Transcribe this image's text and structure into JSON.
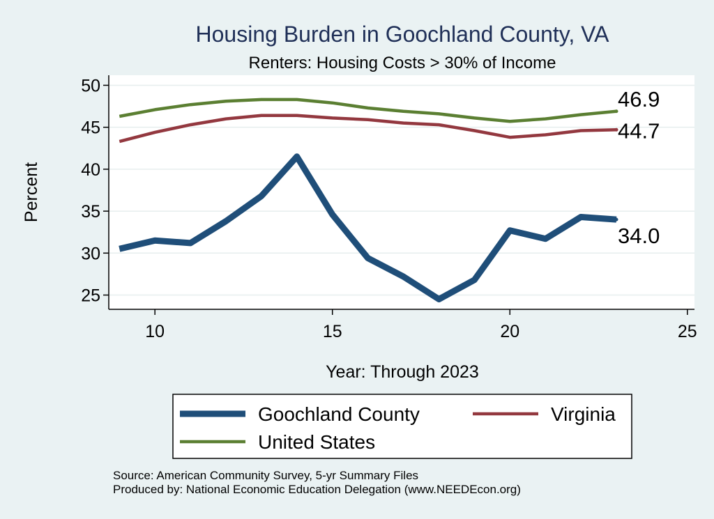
{
  "chart_data": {
    "type": "line",
    "title": "Housing Burden in Goochland County, VA",
    "subtitle": "Renters: Housing Costs > 30% of Income",
    "xlabel": "Year: Through 2023",
    "ylabel": "Percent",
    "xlim": [
      8.7,
      25.2
    ],
    "ylim": [
      23.3,
      51.2
    ],
    "x_ticks": [
      10,
      15,
      20,
      25
    ],
    "y_ticks": [
      25,
      30,
      35,
      40,
      45,
      50
    ],
    "grid": true,
    "legend_position": "bottom",
    "x": [
      9,
      10,
      11,
      12,
      13,
      14,
      15,
      16,
      17,
      18,
      19,
      20,
      21,
      22,
      23
    ],
    "series": [
      {
        "name": "Goochland County",
        "color": "#1f4e79",
        "line_width": 9,
        "values": [
          30.5,
          31.5,
          31.2,
          33.8,
          36.8,
          41.5,
          34.6,
          29.4,
          27.2,
          24.5,
          26.8,
          32.7,
          31.7,
          34.3,
          34.0
        ],
        "end_label": "34.0"
      },
      {
        "name": "Virginia",
        "color": "#93383f",
        "line_width": 4.5,
        "values": [
          43.3,
          44.4,
          45.3,
          46.0,
          46.4,
          46.4,
          46.1,
          45.9,
          45.5,
          45.3,
          44.6,
          43.8,
          44.1,
          44.6,
          44.7
        ],
        "end_label": "44.7"
      },
      {
        "name": "United States",
        "color": "#5b7f32",
        "line_width": 4.5,
        "values": [
          46.3,
          47.1,
          47.7,
          48.1,
          48.3,
          48.3,
          47.9,
          47.3,
          46.9,
          46.6,
          46.1,
          45.7,
          46.0,
          46.5,
          46.9
        ],
        "end_label": "46.9"
      }
    ],
    "notes": [
      "Source: American Community Survey, 5-yr Summary Files",
      "Produced by: National Economic Education Delegation (www.NEEDEcon.org)"
    ]
  }
}
